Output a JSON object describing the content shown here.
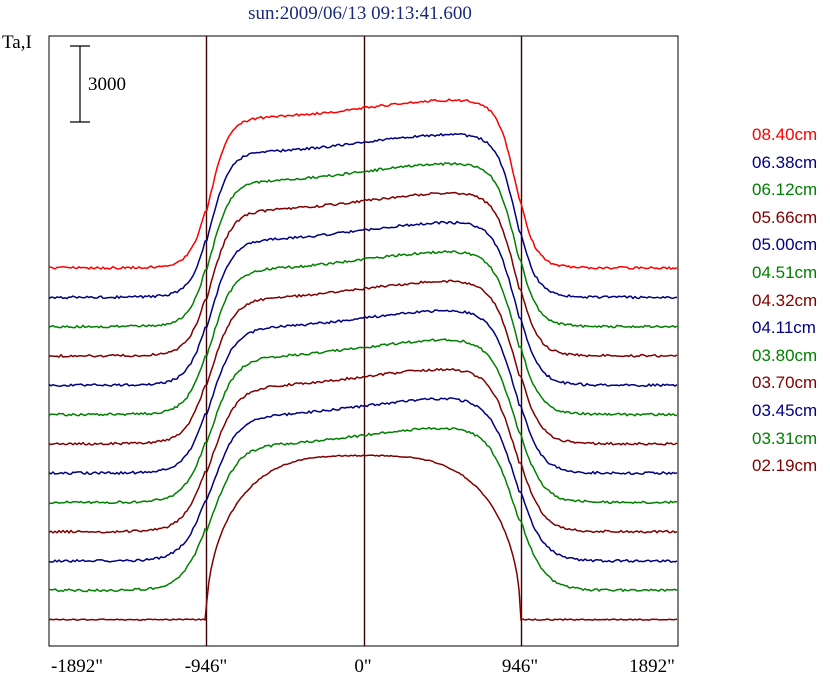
{
  "chart_data": {
    "type": "line",
    "title": "sun:2009/06/13 09:13:41.600",
    "ylabel": "Ta,I",
    "scale_bar_label": "3000",
    "x_ticks": [
      "-1892\"",
      "-946\"",
      "0\"",
      "946\"",
      "1892\""
    ],
    "xlim": [
      -1892,
      1892
    ],
    "vertical_lines": [
      -946,
      0,
      946
    ],
    "grid": false,
    "legend_position": "right",
    "series": [
      {
        "name": "08.40cm",
        "color": "#ff0000"
      },
      {
        "name": "06.38cm",
        "color": "#000080"
      },
      {
        "name": "06.12cm",
        "color": "#008000"
      },
      {
        "name": "05.66cm",
        "color": "#800000"
      },
      {
        "name": "05.00cm",
        "color": "#000080"
      },
      {
        "name": "04.51cm",
        "color": "#008000"
      },
      {
        "name": "04.32cm",
        "color": "#800000"
      },
      {
        "name": "04.11cm",
        "color": "#000080"
      },
      {
        "name": "03.80cm",
        "color": "#008000"
      },
      {
        "name": "03.70cm",
        "color": "#800000"
      },
      {
        "name": "03.45cm",
        "color": "#000080"
      },
      {
        "name": "03.31cm",
        "color": "#008000"
      },
      {
        "name": "02.19cm",
        "color": "#800000"
      }
    ]
  }
}
